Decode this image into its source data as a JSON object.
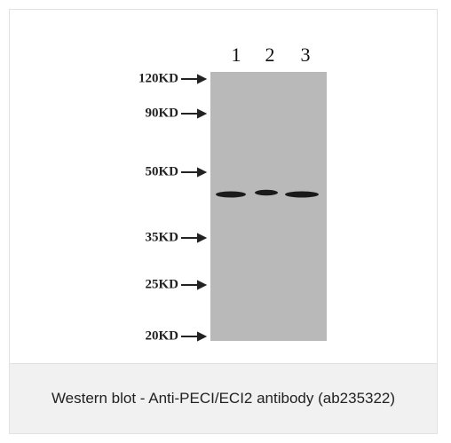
{
  "figure": {
    "lanes": [
      "1",
      "2",
      "3"
    ],
    "markers": [
      "120KD",
      "90KD",
      "50KD",
      "35KD",
      "25KD",
      "20KD"
    ]
  },
  "caption": "Western blot - Anti-PECI/ECI2 antibody (ab235322)"
}
